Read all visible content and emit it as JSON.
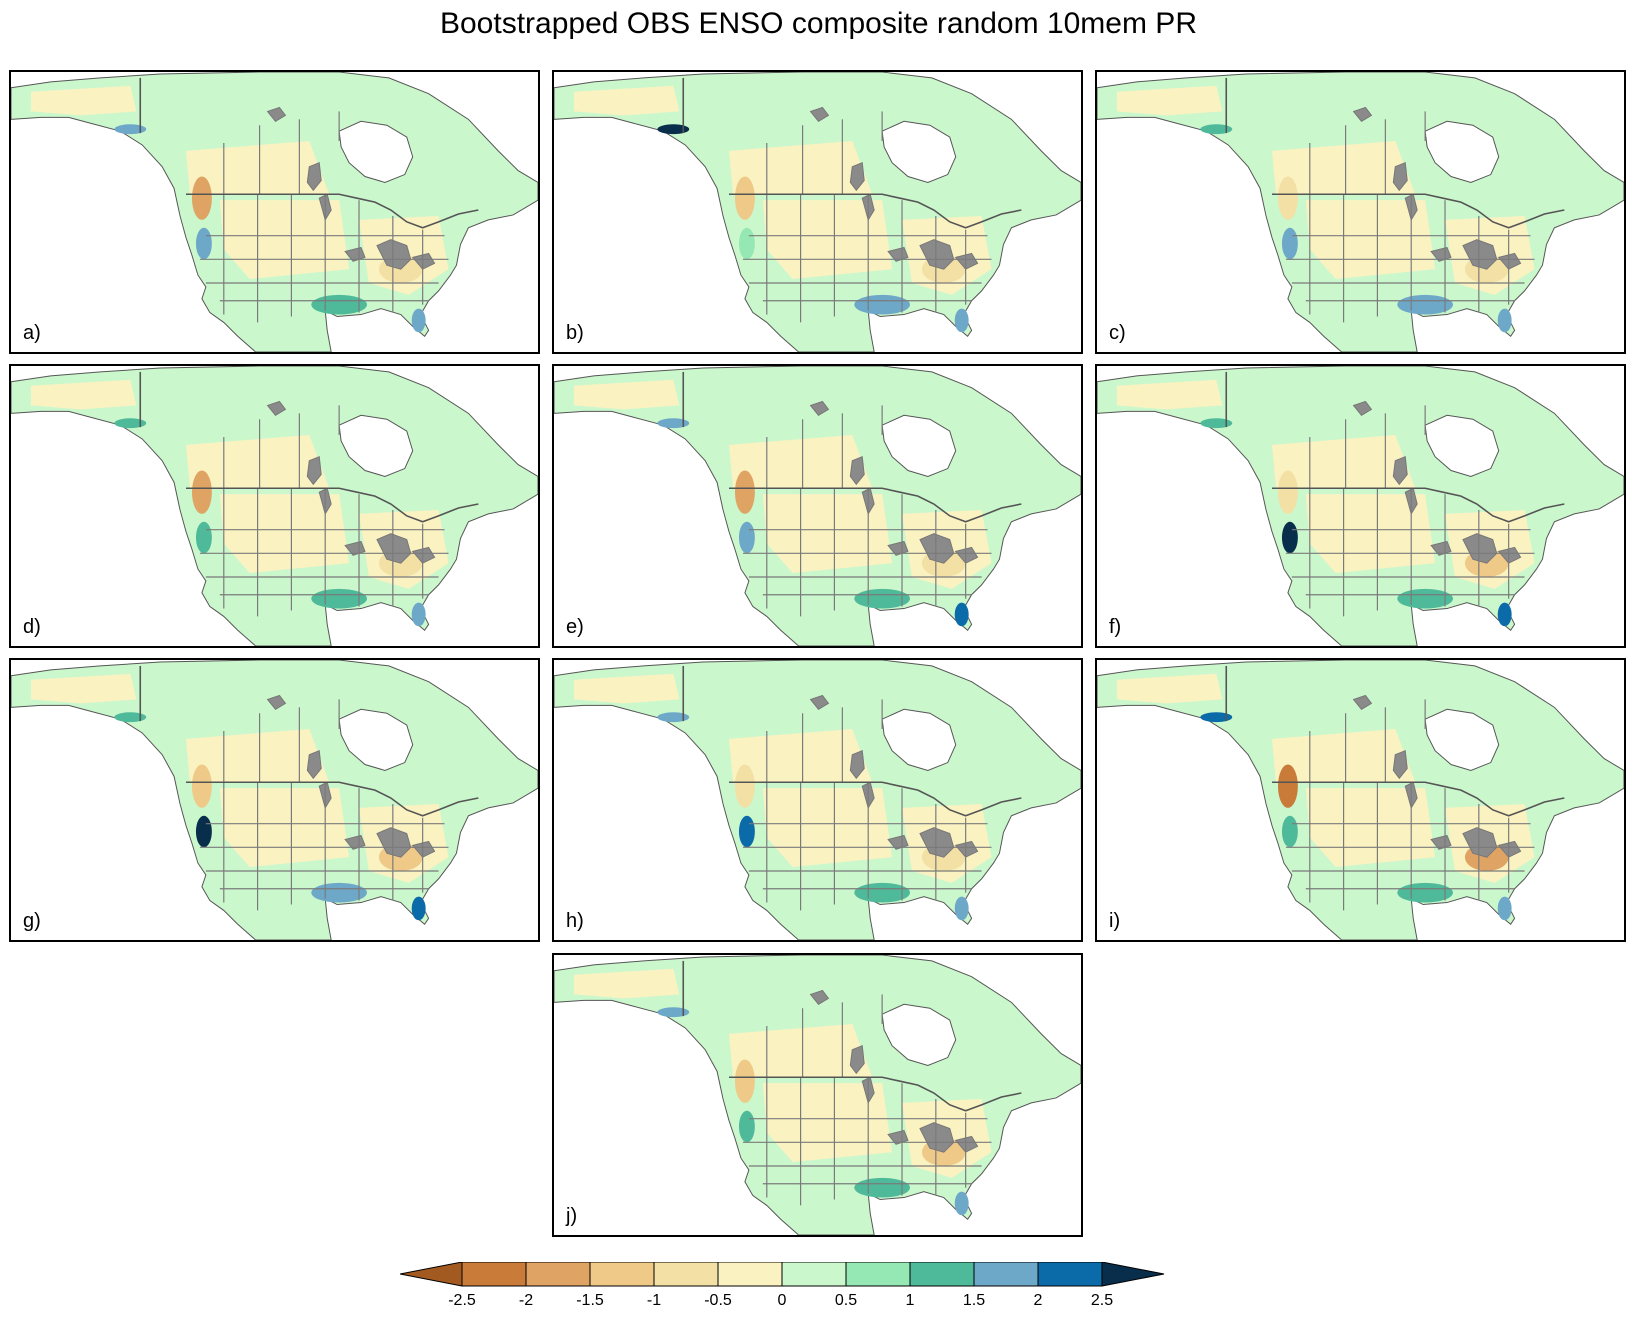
{
  "figure": {
    "title": "Bootstrapped OBS ENSO composite random 10mem PR"
  },
  "panels": [
    {
      "label": "a)",
      "anomalies": {
        "pacific_nw": -2.0,
        "california": 1.5,
        "gulf_coast": 1.0,
        "florida": 1.5,
        "ohio_valley": -1.0,
        "alaska_coast": 1.5
      }
    },
    {
      "label": "b)",
      "anomalies": {
        "pacific_nw": -1.5,
        "california": 0.5,
        "gulf_coast": 1.5,
        "florida": 1.5,
        "ohio_valley": -1.0,
        "alaska_coast": 2.5
      }
    },
    {
      "label": "c)",
      "anomalies": {
        "pacific_nw": -1.0,
        "california": 1.5,
        "gulf_coast": 1.5,
        "florida": 1.5,
        "ohio_valley": -1.0,
        "alaska_coast": 1.0
      }
    },
    {
      "label": "d)",
      "anomalies": {
        "pacific_nw": -2.0,
        "california": 1.0,
        "gulf_coast": 1.0,
        "florida": 1.5,
        "ohio_valley": -1.0,
        "alaska_coast": 1.0
      }
    },
    {
      "label": "e)",
      "anomalies": {
        "pacific_nw": -2.0,
        "california": 1.5,
        "gulf_coast": 1.0,
        "florida": 2.0,
        "ohio_valley": -1.0,
        "alaska_coast": 1.5
      }
    },
    {
      "label": "f)",
      "anomalies": {
        "pacific_nw": -1.0,
        "california": 2.5,
        "gulf_coast": 1.0,
        "florida": 2.0,
        "ohio_valley": -1.5,
        "alaska_coast": 1.0
      }
    },
    {
      "label": "g)",
      "anomalies": {
        "pacific_nw": -1.5,
        "california": 2.5,
        "gulf_coast": 1.5,
        "florida": 2.0,
        "ohio_valley": -1.5,
        "alaska_coast": 1.0
      }
    },
    {
      "label": "h)",
      "anomalies": {
        "pacific_nw": -1.0,
        "california": 2.0,
        "gulf_coast": 1.0,
        "florida": 1.5,
        "ohio_valley": -1.0,
        "alaska_coast": 1.5
      }
    },
    {
      "label": "i)",
      "anomalies": {
        "pacific_nw": -2.5,
        "california": 1.0,
        "gulf_coast": 1.0,
        "florida": 1.5,
        "ohio_valley": -2.0,
        "alaska_coast": 2.0
      }
    },
    {
      "label": "j)",
      "anomalies": {
        "pacific_nw": -1.5,
        "california": 1.0,
        "gulf_coast": 1.0,
        "florida": 1.5,
        "ohio_valley": -1.5,
        "alaska_coast": 1.5
      }
    }
  ],
  "colorbar": {
    "ticks": [
      "-2.5",
      "-2",
      "-1.5",
      "-1",
      "-0.5",
      "0",
      "0.5",
      "1",
      "1.5",
      "2",
      "2.5"
    ],
    "tick_values": [
      -2.5,
      -2,
      -1.5,
      -1,
      -0.5,
      0,
      0.5,
      1,
      1.5,
      2,
      2.5
    ],
    "colors": [
      "#a35a20",
      "#c97c3a",
      "#dfa463",
      "#efc987",
      "#f3e0a4",
      "#fbf2c2",
      "#cbf7cd",
      "#95e8b4",
      "#4fba9a",
      "#6ea8c8",
      "#0b6aa8",
      "#082e4c"
    ],
    "extend": "both"
  },
  "map_colors": {
    "land_neutral_dry": "#fbf2c2",
    "land_neutral_wet": "#cbf7cd",
    "water": "#ffffff",
    "coastline": "#555555",
    "state_borders": "#7a7a7a"
  }
}
